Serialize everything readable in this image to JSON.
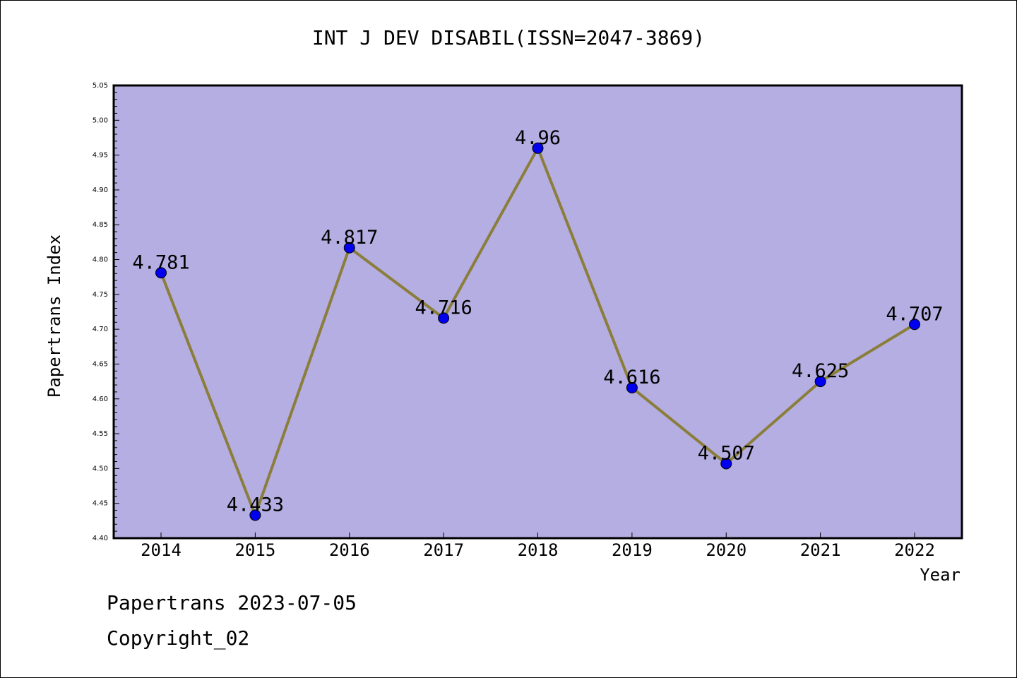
{
  "chart_data": {
    "type": "line",
    "title": "INT J DEV DISABIL(ISSN=2047-3869)",
    "xlabel": "Year",
    "ylabel": "Papertrans Index",
    "categories": [
      "2014",
      "2015",
      "2016",
      "2017",
      "2018",
      "2019",
      "2020",
      "2021",
      "2022"
    ],
    "values": [
      4.781,
      4.433,
      4.817,
      4.716,
      4.96,
      4.616,
      4.507,
      4.625,
      4.707
    ],
    "data_labels": [
      "4.781",
      "4.433",
      "4.817",
      "4.716",
      "4.96",
      "4.616",
      "4.507",
      "4.625",
      "4.707"
    ],
    "ylim": [
      4.4,
      5.05
    ],
    "yticks": [
      "4.40",
      "4.45",
      "4.50",
      "4.55",
      "4.60",
      "4.65",
      "4.70",
      "4.75",
      "4.80",
      "4.85",
      "4.90",
      "4.95",
      "5.00",
      "5.05"
    ],
    "grid": false,
    "colors": {
      "plot_background": "#b4aee2",
      "line": "#8b7d3a",
      "marker": "#0000ee"
    }
  },
  "footer": {
    "line1": "Papertrans 2023-07-05",
    "line2": "Copyright_02"
  }
}
